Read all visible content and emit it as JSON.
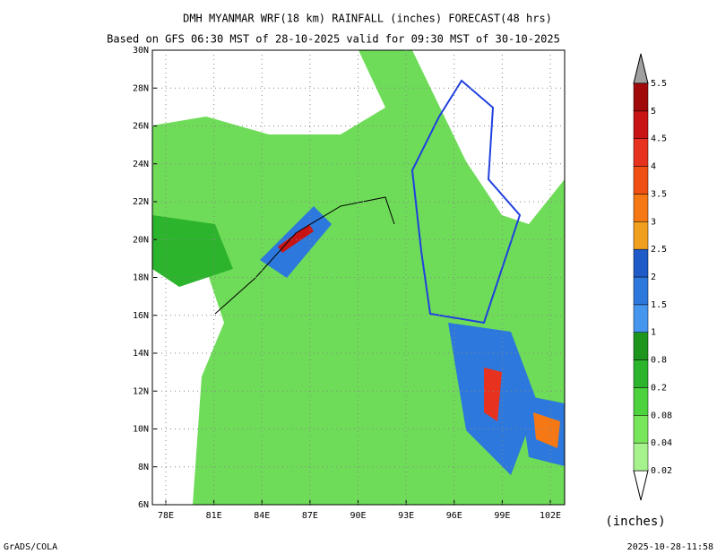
{
  "header": {
    "title": "DMH MYANMAR WRF(18 km) RAINFALL (inches) FORECAST(48 hrs)",
    "subtitle": "Based on GFS 06:30 MST of 28-10-2025 valid for 09:30 MST of 30-10-2025"
  },
  "map": {
    "lat_labels": [
      "30N",
      "28N",
      "26N",
      "24N",
      "22N",
      "20N",
      "18N",
      "16N",
      "14N",
      "12N",
      "10N",
      "8N",
      "6N"
    ],
    "lon_labels": [
      "78E",
      "81E",
      "84E",
      "87E",
      "90E",
      "93E",
      "96E",
      "99E",
      "102E"
    ]
  },
  "legend": {
    "labels": [
      "0.02",
      "0.04",
      "0.08",
      "0.2",
      "0.8",
      "1",
      "1.5",
      "2",
      "2.5",
      "3",
      "3.5",
      "4",
      "4.5",
      "5",
      "5.5"
    ],
    "colors": [
      "#a6f28c",
      "#78e65a",
      "#4cd23c",
      "#2db42d",
      "#1e961e",
      "#4696f0",
      "#2d78dc",
      "#1e5ac8",
      "#f0a01e",
      "#f57814",
      "#f05014",
      "#e6321e",
      "#c81414",
      "#a00a0a"
    ],
    "unit": "(inches)"
  },
  "footer": {
    "left": "GrADS/COLA",
    "right": "2025-10-28-11:58"
  }
}
